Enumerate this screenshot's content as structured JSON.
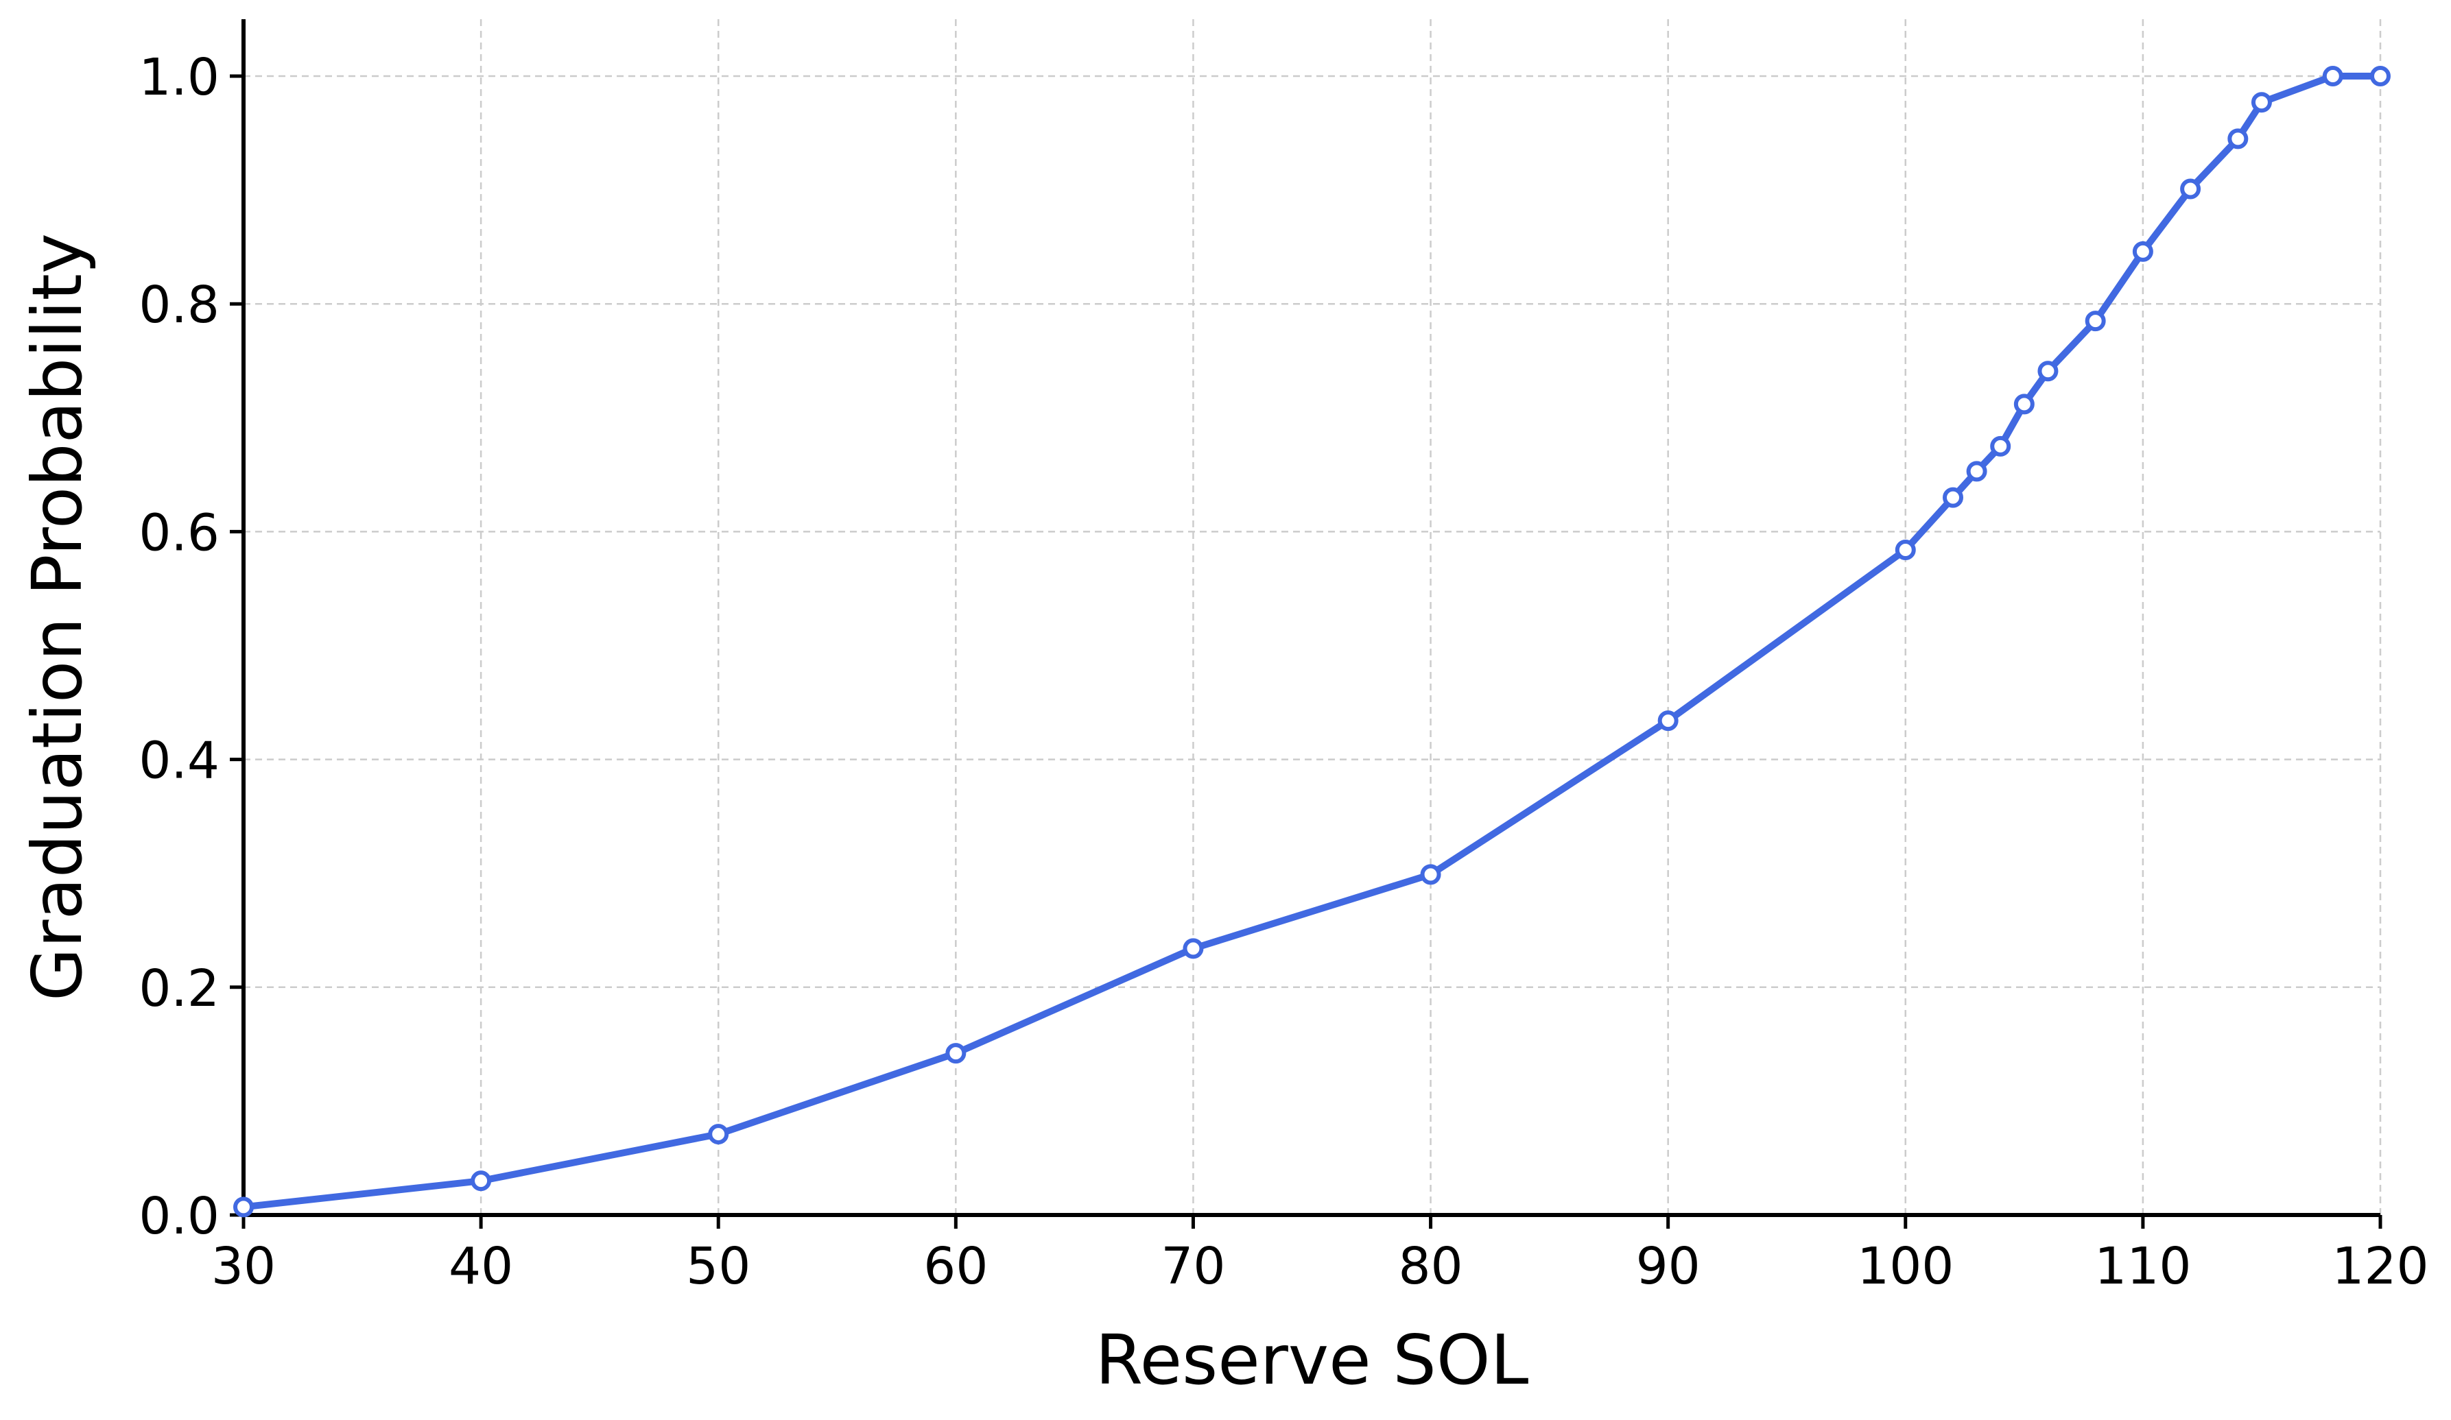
{
  "chart_data": {
    "type": "line",
    "title": "",
    "xlabel": "Reserve SOL",
    "ylabel": "Graduation Probability",
    "xlim": [
      30,
      120
    ],
    "ylim": [
      0.0,
      1.05
    ],
    "xticks": [
      30,
      40,
      50,
      60,
      70,
      80,
      90,
      100,
      110,
      120
    ],
    "yticks": [
      0.0,
      0.2,
      0.4,
      0.6,
      0.8,
      1.0
    ],
    "xtick_labels": [
      "30",
      "40",
      "50",
      "60",
      "70",
      "80",
      "90",
      "100",
      "110",
      "120"
    ],
    "ytick_labels": [
      "0.0",
      "0.2",
      "0.4",
      "0.6",
      "0.8",
      "1.0"
    ],
    "grid": true,
    "line_color": "#4169e1",
    "marker_fill": "#ffffff",
    "series": [
      {
        "x": [
          30,
          40,
          50,
          60,
          70,
          80,
          90,
          100,
          102,
          103,
          104,
          105,
          106,
          108,
          110,
          112,
          114,
          115,
          118,
          120
        ],
        "y": [
          0.007,
          0.03,
          0.071,
          0.142,
          0.234,
          0.299,
          0.434,
          0.584,
          0.63,
          0.653,
          0.675,
          0.712,
          0.741,
          0.785,
          0.846,
          0.901,
          0.945,
          0.977,
          1.0,
          1.0
        ]
      }
    ]
  }
}
